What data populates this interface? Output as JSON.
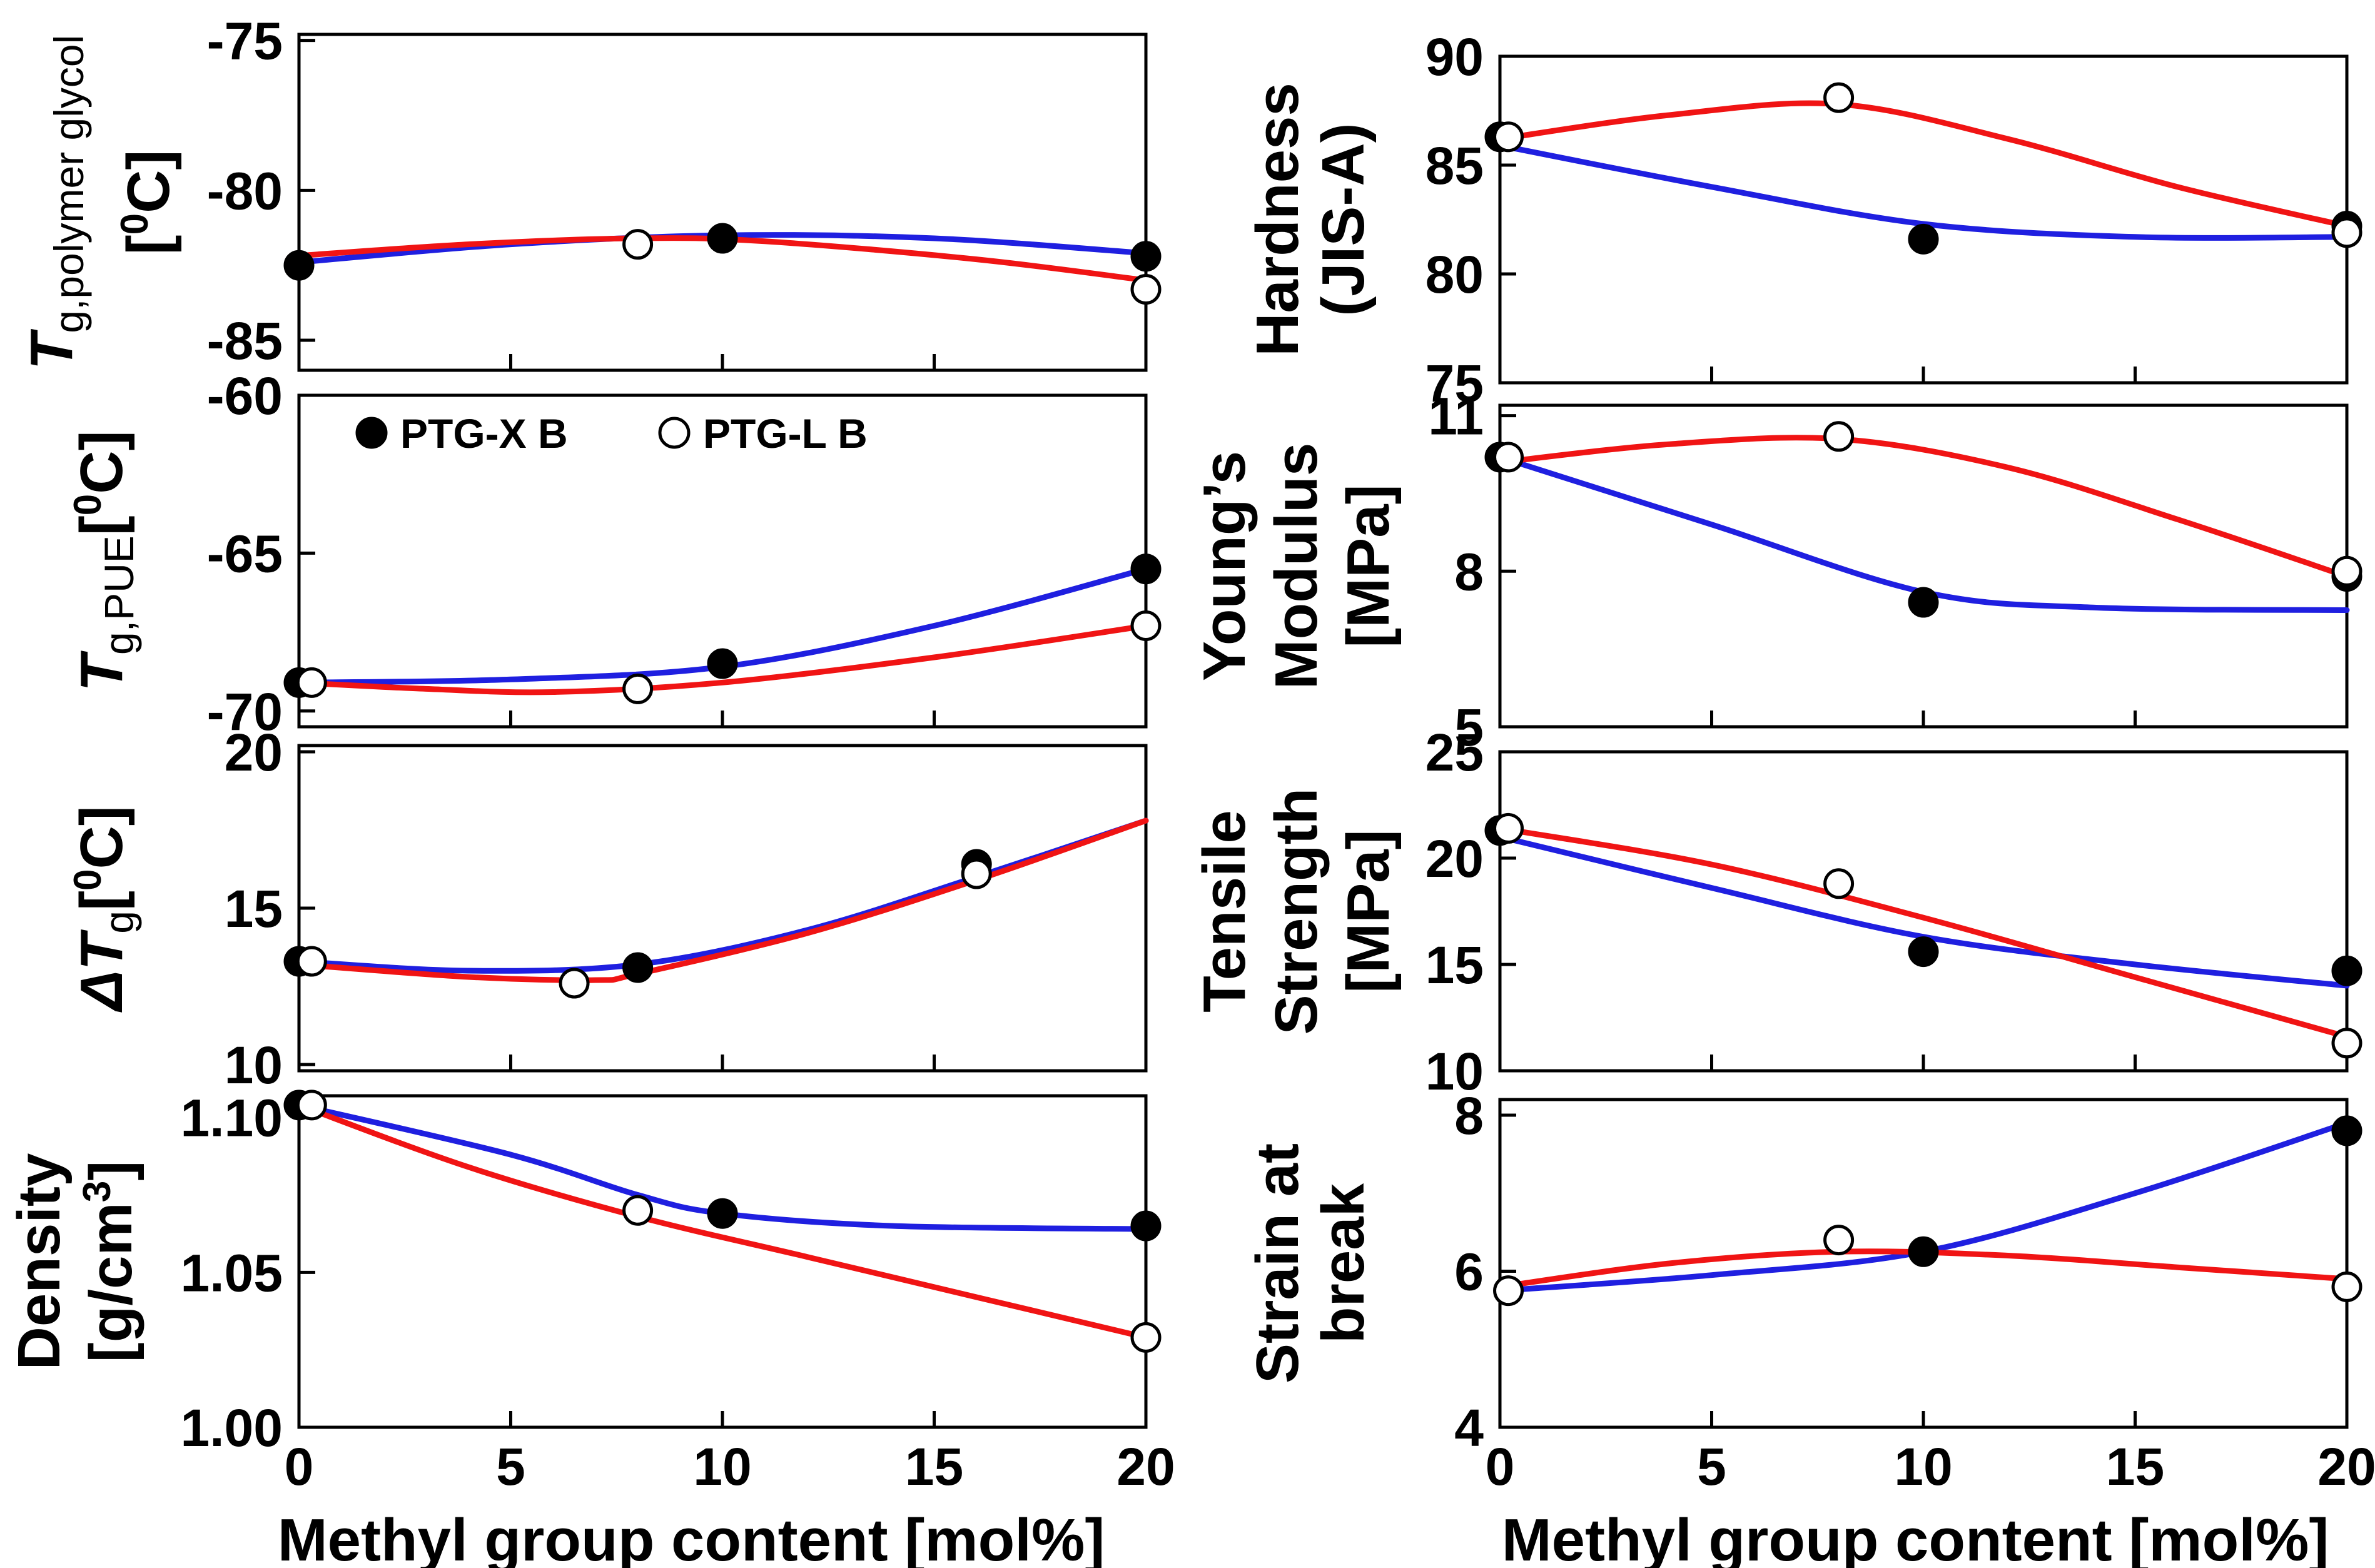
{
  "legend": {
    "filled": "PTG-X B",
    "open": "PTG-L B"
  },
  "colors": {
    "xb_line": "#1f1fe0",
    "lb_line": "#f01414",
    "axis": "#000000"
  },
  "chart_data": [
    {
      "id": "tg-polymer-glycol",
      "type": "line",
      "ylabel": {
        "parts": [
          {
            "t": "T",
            "s": "italic"
          },
          {
            "t": "g,polymer glycol",
            "s": "sub"
          }
        ],
        "line2": [
          {
            "t": "[",
            "s": "n"
          },
          {
            "t": "0",
            "s": "sup"
          },
          {
            "t": "C]",
            "s": "n"
          }
        ]
      },
      "xlim": [
        0,
        20
      ],
      "ylim": [
        -86,
        -74.8
      ],
      "yticks": [
        -75,
        -80,
        -85
      ],
      "ytick_labels": [
        "-75",
        "-80",
        "-85"
      ],
      "series": [
        {
          "name": "PTG-X B",
          "marker": "filled",
          "points": [
            [
              0,
              -82.5
            ],
            [
              10,
              -81.6
            ],
            [
              20,
              -82.2
            ]
          ],
          "fit": [
            [
              0,
              -82.4
            ],
            [
              5,
              -81.8
            ],
            [
              10,
              -81.5
            ],
            [
              15,
              -81.6
            ],
            [
              20,
              -82.1
            ]
          ]
        },
        {
          "name": "PTG-L B",
          "marker": "open",
          "points": [
            [
              8,
              -81.8
            ],
            [
              20,
              -83.3
            ]
          ],
          "fit": [
            [
              -0.2,
              -82.2
            ],
            [
              4,
              -81.8
            ],
            [
              8,
              -81.6
            ],
            [
              11,
              -81.7
            ],
            [
              16,
              -82.3
            ],
            [
              20,
              -83.0
            ]
          ]
        }
      ]
    },
    {
      "id": "tg-pue",
      "type": "line",
      "ylabel": {
        "parts": [
          {
            "t": "T",
            "s": "italic"
          },
          {
            "t": "g,PUE",
            "s": "sub"
          },
          {
            "t": "[",
            "s": "n"
          },
          {
            "t": "0",
            "s": "sup"
          },
          {
            "t": "C]",
            "s": "n"
          }
        ],
        "line2": []
      },
      "xlim": [
        0,
        20
      ],
      "ylim": [
        -70.5,
        -60
      ],
      "yticks": [
        -60,
        -65,
        -70
      ],
      "ytick_labels": [
        "-60",
        "-65",
        "-70"
      ],
      "series": [
        {
          "name": "PTG-X B",
          "marker": "filled",
          "points": [
            [
              0,
              -69.1
            ],
            [
              10,
              -68.5
            ],
            [
              20,
              -65.5
            ]
          ],
          "fit": [
            [
              0,
              -69.1
            ],
            [
              5,
              -69.0
            ],
            [
              10,
              -68.6
            ],
            [
              15,
              -67.3
            ],
            [
              20,
              -65.5
            ]
          ]
        },
        {
          "name": "PTG-L B",
          "marker": "open",
          "points": [
            [
              0.3,
              -69.1
            ],
            [
              8,
              -69.3
            ],
            [
              20,
              -67.3
            ]
          ],
          "fit": [
            [
              0,
              -69.1
            ],
            [
              3,
              -69.3
            ],
            [
              6,
              -69.4
            ],
            [
              10,
              -69.1
            ],
            [
              15,
              -68.3
            ],
            [
              20,
              -67.3
            ]
          ]
        }
      ]
    },
    {
      "id": "delta-tg",
      "type": "line",
      "ylabel": {
        "parts": [
          {
            "t": "ΔT",
            "s": "italic"
          },
          {
            "t": "g",
            "s": "sub"
          },
          {
            "t": "[",
            "s": "n"
          },
          {
            "t": "0",
            "s": "sup"
          },
          {
            "t": "C]",
            "s": "n"
          }
        ],
        "line2": []
      },
      "xlim": [
        0,
        20
      ],
      "ylim": [
        9.8,
        20.2
      ],
      "yticks": [
        20,
        15,
        10
      ],
      "ytick_labels": [
        "20",
        "15",
        "10"
      ],
      "series": [
        {
          "name": "PTG-X B",
          "marker": "filled",
          "points": [
            [
              0,
              13.3
            ],
            [
              8,
              13.1
            ],
            [
              16,
              16.4
            ]
          ],
          "fit": [
            [
              0,
              13.3
            ],
            [
              4,
              13.0
            ],
            [
              8,
              13.2
            ],
            [
              12,
              14.3
            ],
            [
              16,
              16.0
            ],
            [
              20,
              17.8
            ]
          ]
        },
        {
          "name": "PTG-L B",
          "marker": "open",
          "points": [
            [
              0.3,
              13.3
            ],
            [
              6.5,
              12.6
            ],
            [
              16,
              16.1
            ]
          ],
          "fit": [
            [
              0,
              13.2
            ],
            [
              4,
              12.8
            ],
            [
              7,
              12.7
            ],
            [
              8,
              12.9
            ],
            [
              12,
              14.2
            ],
            [
              16,
              15.9
            ],
            [
              20,
              17.8
            ]
          ]
        }
      ]
    },
    {
      "id": "density",
      "type": "line",
      "ylabel": {
        "parts": [
          {
            "t": "Density",
            "s": "n"
          }
        ],
        "line2": [
          {
            "t": "[g/cm",
            "s": "n"
          },
          {
            "t": "3",
            "s": "sup"
          },
          {
            "t": "]",
            "s": "n"
          }
        ]
      },
      "xlim": [
        0,
        20
      ],
      "ylim": [
        1.0,
        1.107
      ],
      "yticks": [
        1.1,
        1.05,
        1.0
      ],
      "ytick_labels": [
        "1.10",
        "1.05",
        "1.00"
      ],
      "series": [
        {
          "name": "PTG-X B",
          "marker": "filled",
          "points": [
            [
              0,
              1.104
            ],
            [
              10,
              1.069
            ],
            [
              20,
              1.065
            ]
          ],
          "fit": [
            [
              0,
              1.104
            ],
            [
              5,
              1.088
            ],
            [
              8,
              1.075
            ],
            [
              10,
              1.069
            ],
            [
              14,
              1.065
            ],
            [
              20,
              1.064
            ]
          ]
        },
        {
          "name": "PTG-L B",
          "marker": "open",
          "points": [
            [
              0.3,
              1.104
            ],
            [
              8,
              1.07
            ],
            [
              20,
              1.029
            ]
          ],
          "fit": [
            [
              0,
              1.104
            ],
            [
              4,
              1.084
            ],
            [
              8,
              1.068
            ],
            [
              12,
              1.055
            ],
            [
              16,
              1.042
            ],
            [
              20,
              1.029
            ]
          ]
        }
      ]
    },
    {
      "id": "hardness",
      "type": "line",
      "ylabel": {
        "parts": [
          {
            "t": "Hardness",
            "s": "n"
          }
        ],
        "line2": [
          {
            "t": "(JIS-A)",
            "s": "n"
          }
        ]
      },
      "xlim": [
        0,
        20
      ],
      "ylim": [
        75,
        90
      ],
      "yticks": [
        90,
        85,
        80,
        75
      ],
      "ytick_labels": [
        "90",
        "85",
        "80",
        "75"
      ],
      "series": [
        {
          "name": "PTG-X B",
          "marker": "filled",
          "points": [
            [
              0,
              86.3
            ],
            [
              10,
              81.6
            ],
            [
              20,
              82.2
            ]
          ],
          "fit": [
            [
              0,
              85.9
            ],
            [
              5,
              84.0
            ],
            [
              10,
              82.3
            ],
            [
              15,
              81.7
            ],
            [
              20,
              81.7
            ]
          ]
        },
        {
          "name": "PTG-L B",
          "marker": "open",
          "points": [
            [
              0.2,
              86.3
            ],
            [
              8,
              88.1
            ],
            [
              20,
              81.9
            ]
          ],
          "fit": [
            [
              0,
              86.2
            ],
            [
              4,
              87.3
            ],
            [
              8,
              87.8
            ],
            [
              12,
              86.2
            ],
            [
              16,
              84.0
            ],
            [
              20,
              82.2
            ]
          ]
        }
      ]
    },
    {
      "id": "youngs-modulus",
      "type": "line",
      "ylabel": {
        "parts": [
          {
            "t": "Young’s",
            "s": "n"
          }
        ],
        "line2": [
          {
            "t": "Modulus",
            "s": "n"
          }
        ],
        "line3": [
          {
            "t": "[MPa]",
            "s": "n"
          }
        ]
      },
      "xlim": [
        0,
        20
      ],
      "ylim": [
        5,
        11.2
      ],
      "yticks": [
        11,
        8,
        5
      ],
      "ytick_labels": [
        "11",
        "8",
        "5"
      ],
      "series": [
        {
          "name": "PTG-X B",
          "marker": "filled",
          "points": [
            [
              0,
              10.2
            ],
            [
              10,
              7.4
            ],
            [
              20,
              7.9
            ]
          ],
          "fit": [
            [
              0,
              10.2
            ],
            [
              5,
              8.9
            ],
            [
              10,
              7.6
            ],
            [
              14,
              7.3
            ],
            [
              20,
              7.25
            ]
          ]
        },
        {
          "name": "PTG-L B",
          "marker": "open",
          "points": [
            [
              0.2,
              10.2
            ],
            [
              8,
              10.6
            ],
            [
              20,
              8.0
            ]
          ],
          "fit": [
            [
              0,
              10.1
            ],
            [
              4,
              10.45
            ],
            [
              8,
              10.55
            ],
            [
              12,
              10.0
            ],
            [
              16,
              9.0
            ],
            [
              20,
              7.9
            ]
          ]
        }
      ]
    },
    {
      "id": "tensile-strength",
      "type": "line",
      "ylabel": {
        "parts": [
          {
            "t": "Tensile",
            "s": "n"
          }
        ],
        "line2": [
          {
            "t": "Strength",
            "s": "n"
          }
        ],
        "line3": [
          {
            "t": "[MPa]",
            "s": "n"
          }
        ]
      },
      "xlim": [
        0,
        20
      ],
      "ylim": [
        10,
        25
      ],
      "yticks": [
        25,
        20,
        15,
        10
      ],
      "ytick_labels": [
        "25",
        "20",
        "15",
        "10"
      ],
      "series": [
        {
          "name": "PTG-X B",
          "marker": "filled",
          "points": [
            [
              0,
              21.3
            ],
            [
              10,
              15.6
            ],
            [
              20,
              14.7
            ]
          ],
          "fit": [
            [
              0,
              21.0
            ],
            [
              5,
              18.6
            ],
            [
              10,
              16.3
            ],
            [
              15,
              15.0
            ],
            [
              20,
              14.0
            ]
          ]
        },
        {
          "name": "PTG-L B",
          "marker": "open",
          "points": [
            [
              0.2,
              21.4
            ],
            [
              8,
              18.8
            ],
            [
              20,
              11.3
            ]
          ],
          "fit": [
            [
              0,
              21.4
            ],
            [
              5,
              19.7
            ],
            [
              10,
              17.2
            ],
            [
              15,
              14.4
            ],
            [
              20,
              11.6
            ]
          ]
        }
      ]
    },
    {
      "id": "strain-at-break",
      "type": "line",
      "ylabel": {
        "parts": [
          {
            "t": "Strain at",
            "s": "n"
          }
        ],
        "line2": [
          {
            "t": "break",
            "s": "n"
          }
        ]
      },
      "xlim": [
        0,
        20
      ],
      "ylim": [
        4,
        8.2
      ],
      "yticks": [
        8,
        6,
        4
      ],
      "ytick_labels": [
        "8",
        "6",
        "4"
      ],
      "series": [
        {
          "name": "PTG-X B",
          "marker": "filled",
          "points": [
            [
              10,
              6.25
            ],
            [
              20,
              7.8
            ]
          ],
          "fit": [
            [
              0,
              5.75
            ],
            [
              5,
              5.95
            ],
            [
              10,
              6.25
            ],
            [
              15,
              7.0
            ],
            [
              20,
              7.9
            ]
          ]
        },
        {
          "name": "PTG-L B",
          "marker": "open",
          "points": [
            [
              0.2,
              5.75
            ],
            [
              8,
              6.4
            ],
            [
              20,
              5.8
            ]
          ],
          "fit": [
            [
              0,
              5.8
            ],
            [
              4,
              6.1
            ],
            [
              8,
              6.25
            ],
            [
              12,
              6.2
            ],
            [
              16,
              6.05
            ],
            [
              20,
              5.9
            ]
          ]
        }
      ]
    }
  ],
  "x_axis": {
    "ticks": [
      0,
      5,
      10,
      15,
      20
    ],
    "tick_labels": [
      "0",
      "5",
      "10",
      "15",
      "20"
    ],
    "label": "Methyl group content [mol%]"
  }
}
